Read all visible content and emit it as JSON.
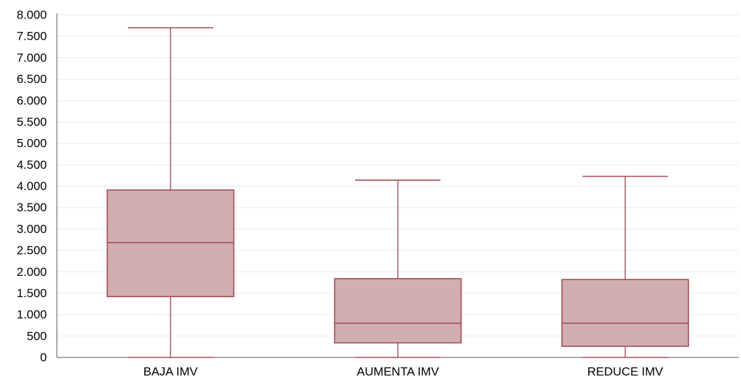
{
  "chart_data": {
    "type": "box",
    "categories": [
      "BAJA IMV",
      "AUMENTA IMV",
      "REDUCE IMV"
    ],
    "boxes": [
      {
        "category": "BAJA IMV",
        "min": 0,
        "q1": 1420,
        "median": 2680,
        "q3": 3910,
        "max": 7700
      },
      {
        "category": "AUMENTA IMV",
        "min": 0,
        "q1": 340,
        "median": 800,
        "q3": 1840,
        "max": 4140
      },
      {
        "category": "REDUCE IMV",
        "min": 0,
        "q1": 260,
        "median": 800,
        "q3": 1820,
        "max": 4230
      }
    ],
    "ylim": [
      0,
      8000
    ],
    "yticks": [
      0,
      500,
      1000,
      1500,
      2000,
      2500,
      3000,
      3500,
      4000,
      4500,
      5000,
      5500,
      6000,
      6500,
      7000,
      7500,
      8000
    ],
    "ytick_labels": [
      "0",
      "500",
      "1.000",
      "1.500",
      "2.000",
      "2.500",
      "3.000",
      "3.500",
      "4.000",
      "4.500",
      "5.000",
      "5.500",
      "6.000",
      "6.500",
      "7.000",
      "7.500",
      "8.000"
    ],
    "grid": true,
    "colors": {
      "box_fill": "#d1aeb1",
      "box_stroke": "#a64b55",
      "grid": "#e6f0f3",
      "axis": "#555555",
      "text": "#000000"
    }
  }
}
